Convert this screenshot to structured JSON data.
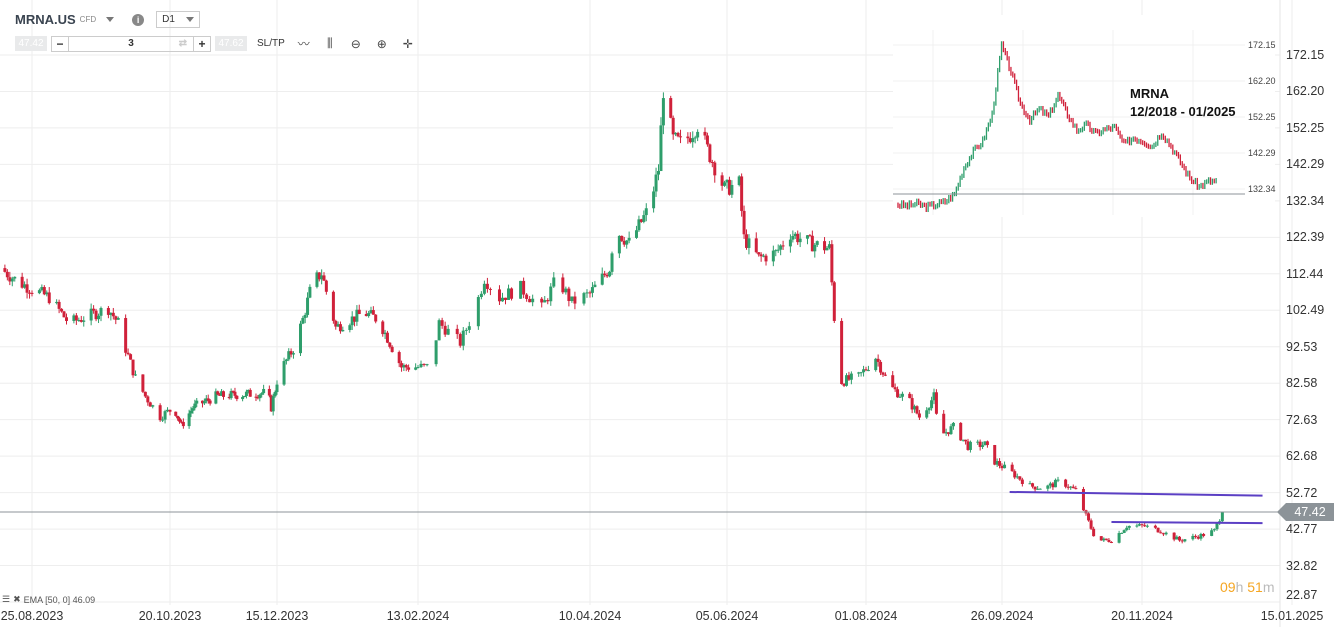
{
  "header": {
    "symbol": "MRNA.US",
    "instrument_type": "CFD",
    "timeframe": "D1"
  },
  "trade_bar": {
    "sell_price": "47.42",
    "quantity": "3",
    "buy_price": "47.62",
    "sltp_label": "SL/TP",
    "icons": [
      "swap-icon",
      "line-chart-icon",
      "candles-icon",
      "zoom-out-icon",
      "zoom-in-icon",
      "crosshair-move-icon"
    ]
  },
  "indicator": {
    "label": "EMA [50, 0] 46.09"
  },
  "timer": {
    "hours": "09",
    "h": "h",
    "minutes": "51",
    "m": "m"
  },
  "inset": {
    "title": "MRNA",
    "period": "12/2018 - 01/2025",
    "axis_labels": [
      "172.15",
      "162.20",
      "152.25",
      "142.29",
      "132.34"
    ],
    "closes": [
      25,
      24,
      26,
      23,
      25,
      28,
      35,
      60,
      75,
      85,
      110,
      175,
      150,
      120,
      105,
      115,
      108,
      128,
      110,
      95,
      100,
      92,
      96,
      98,
      82,
      88,
      85,
      80,
      93,
      80,
      65,
      50,
      42,
      47
    ]
  },
  "chart_data": {
    "type": "candlestick",
    "title": "",
    "y_ticks": [
      "172.15",
      "162.20",
      "152.25",
      "142.29",
      "132.34",
      "122.39",
      "112.44",
      "102.49",
      "92.53",
      "82.58",
      "72.63",
      "62.68",
      "52.72",
      "42.77",
      "32.82",
      "22.87"
    ],
    "ylim": [
      22.87,
      172.15
    ],
    "x_ticks": [
      "25.08.2023",
      "20.10.2023",
      "15.12.2023",
      "13.02.2024",
      "10.04.2024",
      "05.06.2024",
      "01.08.2024",
      "26.09.2024",
      "20.11.2024",
      "15.01.2025"
    ],
    "current_price": "47.42",
    "grid": true,
    "colors": {
      "up": "#2e9e6b",
      "down": "#d0213a",
      "price_line": "#8c9398",
      "trendline": "#5b3fc4",
      "timer": "#f5a623"
    },
    "close_path": [
      [
        "2023-08-12",
        114
      ],
      [
        "2023-08-20",
        110
      ],
      [
        "2023-09-01",
        106
      ],
      [
        "2023-09-09",
        99
      ],
      [
        "2023-09-25",
        103
      ],
      [
        "2023-09-29",
        99
      ],
      [
        "2023-10-02",
        92
      ],
      [
        "2023-10-06",
        84
      ],
      [
        "2023-10-10",
        79
      ],
      [
        "2023-10-16",
        73.5
      ],
      [
        "2023-10-22",
        76
      ],
      [
        "2023-10-26",
        71
      ],
      [
        "2023-11-01",
        76
      ],
      [
        "2023-11-13",
        79
      ],
      [
        "2023-12-10",
        80
      ],
      [
        "2023-12-12",
        76
      ],
      [
        "2023-12-16",
        85.6
      ],
      [
        "2023-12-22",
        92
      ],
      [
        "2023-12-26",
        100
      ],
      [
        "2023-12-30",
        110
      ],
      [
        "2024-01-03",
        112.6
      ],
      [
        "2024-01-09",
        97.8
      ],
      [
        "2024-01-21",
        101.9
      ],
      [
        "2024-01-27",
        100
      ],
      [
        "2024-01-31",
        95
      ],
      [
        "2024-02-06",
        87
      ],
      [
        "2024-02-17",
        87
      ],
      [
        "2024-02-20",
        99
      ],
      [
        "2024-02-27",
        93.7
      ],
      [
        "2024-03-03",
        103
      ],
      [
        "2024-03-06",
        111.3
      ],
      [
        "2024-03-11",
        105.9
      ],
      [
        "2024-03-18",
        108.6
      ],
      [
        "2024-03-25",
        103
      ],
      [
        "2024-03-30",
        111.3
      ],
      [
        "2024-04-04",
        104.6
      ],
      [
        "2024-04-10",
        107
      ],
      [
        "2024-04-18",
        114
      ],
      [
        "2024-04-20",
        124.8
      ],
      [
        "2024-04-26",
        120.8
      ],
      [
        "2024-05-04",
        130.2
      ],
      [
        "2024-05-08",
        141
      ],
      [
        "2024-05-10",
        162.7
      ],
      [
        "2024-05-14",
        149
      ],
      [
        "2024-05-18",
        147.8
      ],
      [
        "2024-05-24",
        153.2
      ],
      [
        "2024-05-28",
        146.4
      ],
      [
        "2024-06-04",
        135.6
      ],
      [
        "2024-06-10",
        137
      ],
      [
        "2024-06-12",
        122.1
      ],
      [
        "2024-06-18",
        116.7
      ],
      [
        "2024-06-25",
        118.1
      ],
      [
        "2024-07-01",
        123.5
      ],
      [
        "2024-07-09",
        120.8
      ],
      [
        "2024-07-17",
        119.4
      ],
      [
        "2024-07-19",
        100.5
      ],
      [
        "2024-07-21",
        82.9
      ],
      [
        "2024-07-29",
        84.3
      ],
      [
        "2024-08-05",
        89.7
      ],
      [
        "2024-08-11",
        81.6
      ],
      [
        "2024-08-19",
        77.5
      ],
      [
        "2024-08-23",
        73.4
      ],
      [
        "2024-08-29",
        78.9
      ],
      [
        "2024-08-31",
        68
      ],
      [
        "2024-09-06",
        70.6
      ],
      [
        "2024-09-12",
        65.4
      ],
      [
        "2024-09-19",
        65.9
      ],
      [
        "2024-09-23",
        61.2
      ],
      [
        "2024-09-29",
        58.6
      ],
      [
        "2024-10-07",
        54.5
      ],
      [
        "2024-10-13",
        54
      ],
      [
        "2024-10-19",
        55.9
      ],
      [
        "2024-10-25",
        53.2
      ],
      [
        "2024-10-29",
        46.4
      ],
      [
        "2024-11-02",
        39.7
      ],
      [
        "2024-11-08",
        39.7
      ],
      [
        "2024-11-14",
        43.6
      ],
      [
        "2024-11-21",
        43.6
      ],
      [
        "2024-11-27",
        42.3
      ],
      [
        "2024-12-04",
        39.7
      ],
      [
        "2024-12-12",
        41
      ],
      [
        "2024-12-17",
        42.3
      ],
      [
        "2024-12-20",
        47.4
      ]
    ],
    "trendlines": [
      {
        "from": [
          "2024-09-29",
          52.9
        ],
        "to": [
          "2025-01-04",
          51.9
        ]
      },
      {
        "from": [
          "2024-11-08",
          44.7
        ],
        "to": [
          "2025-01-04",
          44.4
        ]
      }
    ]
  }
}
